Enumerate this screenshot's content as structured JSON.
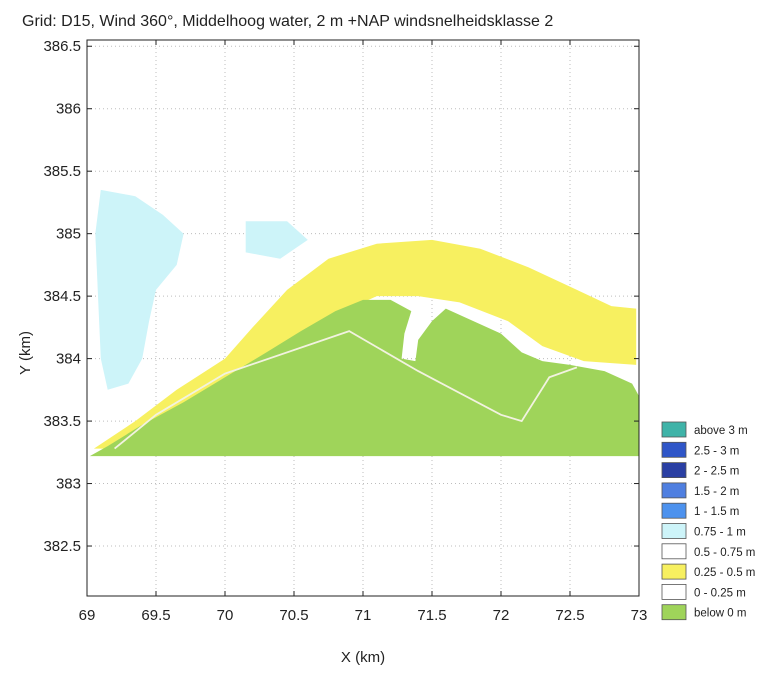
{
  "chart_data": {
    "type": "heatmap",
    "title": "Grid: D15, Wind 360°, Middelhoog water, 2 m +NAP windsnelheidsklasse 2",
    "xlabel": "X (km)",
    "ylabel": "Y (km)",
    "xlim": [
      69,
      73
    ],
    "ylim": [
      382.1,
      386.55
    ],
    "x_ticks": [
      "69",
      "69.5",
      "70",
      "70.5",
      "71",
      "71.5",
      "72",
      "72.5",
      "73"
    ],
    "x_tick_values": [
      69,
      69.5,
      70,
      70.5,
      71,
      71.5,
      72,
      72.5,
      73
    ],
    "y_ticks": [
      "386.5",
      "386",
      "385.5",
      "385",
      "384.5",
      "384",
      "383.5",
      "383",
      "382.5"
    ],
    "y_tick_values": [
      386.5,
      386,
      385.5,
      385,
      384.5,
      384,
      383.5,
      383,
      382.5
    ],
    "grid": true,
    "legend_position": "right",
    "legend": [
      {
        "label": "above 3 m",
        "color": "#3fb3a8"
      },
      {
        "label": "2.5 - 3 m",
        "color": "#2f56c8"
      },
      {
        "label": "2 - 2.5 m",
        "color": "#2a3fa3"
      },
      {
        "label": "1.5 - 2 m",
        "color": "#4f7fe0"
      },
      {
        "label": "1 - 1.5 m",
        "color": "#4d92ee"
      },
      {
        "label": "0.75 - 1 m",
        "color": "#cdf4f9"
      },
      {
        "label": "0.5 - 0.75 m",
        "color": "#ffffff"
      },
      {
        "label": "0.25 - 0.5 m",
        "color": "#f7f060"
      },
      {
        "label": "0 - 0.25 m",
        "color": "#ffffff"
      },
      {
        "label": "below 0 m",
        "color": "#9fd45a"
      }
    ],
    "regions": [
      {
        "class": "0.75 - 1 m",
        "color": "#cdf4f9",
        "points": [
          [
            69.1,
            385.35
          ],
          [
            69.35,
            385.3
          ],
          [
            69.55,
            385.15
          ],
          [
            69.7,
            385.0
          ],
          [
            69.65,
            384.75
          ],
          [
            69.5,
            384.55
          ],
          [
            69.45,
            384.3
          ],
          [
            69.4,
            384.0
          ],
          [
            69.3,
            383.8
          ],
          [
            69.15,
            383.75
          ],
          [
            69.1,
            384.0
          ],
          [
            69.08,
            384.5
          ],
          [
            69.06,
            385.0
          ]
        ]
      },
      {
        "class": "0.75 - 1 m",
        "color": "#cdf4f9",
        "points": [
          [
            70.15,
            385.1
          ],
          [
            70.45,
            385.1
          ],
          [
            70.6,
            384.95
          ],
          [
            70.4,
            384.8
          ],
          [
            70.15,
            384.85
          ]
        ]
      },
      {
        "class": "0.25 - 0.5 m",
        "color": "#f7f060",
        "points": [
          [
            69.05,
            383.28
          ],
          [
            69.35,
            383.5
          ],
          [
            69.65,
            383.75
          ],
          [
            70.0,
            384.0
          ],
          [
            70.2,
            384.25
          ],
          [
            70.45,
            384.55
          ],
          [
            70.75,
            384.8
          ],
          [
            71.1,
            384.92
          ],
          [
            71.5,
            384.95
          ],
          [
            71.85,
            384.88
          ],
          [
            72.2,
            384.73
          ],
          [
            72.55,
            384.55
          ],
          [
            72.8,
            384.42
          ],
          [
            72.98,
            384.4
          ],
          [
            72.98,
            383.95
          ],
          [
            72.6,
            383.98
          ],
          [
            72.3,
            384.1
          ],
          [
            72.05,
            384.3
          ],
          [
            71.7,
            384.45
          ],
          [
            71.4,
            384.5
          ],
          [
            71.1,
            384.5
          ],
          [
            70.8,
            384.35
          ],
          [
            70.5,
            384.15
          ],
          [
            70.2,
            383.9
          ],
          [
            69.85,
            383.6
          ],
          [
            69.5,
            383.4
          ],
          [
            69.2,
            383.28
          ]
        ]
      },
      {
        "class": "below 0 m",
        "color": "#9fd45a",
        "points": [
          [
            69.02,
            383.22
          ],
          [
            73.0,
            383.22
          ],
          [
            73.0,
            383.7
          ],
          [
            72.95,
            383.8
          ],
          [
            72.75,
            383.9
          ],
          [
            72.5,
            383.95
          ],
          [
            72.3,
            383.98
          ],
          [
            72.15,
            384.05
          ],
          [
            72.0,
            384.2
          ],
          [
            71.8,
            384.3
          ],
          [
            71.6,
            384.4
          ],
          [
            71.5,
            384.3
          ],
          [
            71.4,
            384.15
          ],
          [
            71.38,
            383.98
          ],
          [
            71.28,
            384.0
          ],
          [
            71.3,
            384.2
          ],
          [
            71.35,
            384.38
          ],
          [
            71.2,
            384.47
          ],
          [
            71.0,
            384.47
          ],
          [
            70.8,
            384.38
          ],
          [
            70.55,
            384.22
          ],
          [
            70.3,
            384.05
          ],
          [
            70.0,
            383.85
          ],
          [
            69.7,
            383.65
          ],
          [
            69.4,
            383.47
          ],
          [
            69.15,
            383.3
          ]
        ]
      }
    ],
    "dike_line": [
      [
        69.2,
        383.28
      ],
      [
        69.5,
        383.55
      ],
      [
        70.0,
        383.88
      ],
      [
        70.9,
        384.22
      ],
      [
        71.4,
        383.9
      ],
      [
        72.0,
        383.55
      ],
      [
        72.15,
        383.5
      ],
      [
        72.35,
        383.85
      ],
      [
        72.55,
        383.93
      ]
    ]
  }
}
